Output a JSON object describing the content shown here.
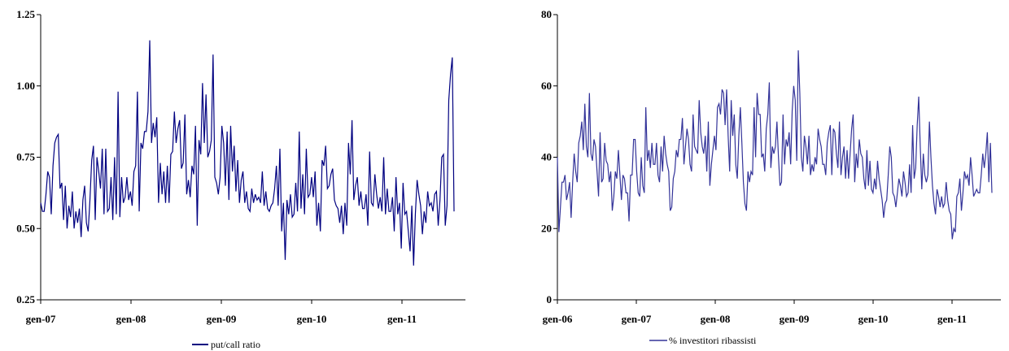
{
  "chart_data": [
    {
      "type": "line",
      "title": "",
      "xlabel": "",
      "ylabel": "",
      "ylim": [
        0.25,
        1.25
      ],
      "yticks": [
        "0.25",
        "0.50",
        "0.75",
        "1.00",
        "1.25"
      ],
      "xticks": [
        "gen-07",
        "gen-08",
        "gen-09",
        "gen-10",
        "gen-11"
      ],
      "x_start": "2007-01",
      "grid": false,
      "legend_position": "bottom",
      "series": [
        {
          "name": "put/call ratio",
          "color": "#000080",
          "values": [
            0.59,
            0.56,
            0.56,
            0.62,
            0.7,
            0.68,
            0.55,
            0.72,
            0.8,
            0.82,
            0.83,
            0.64,
            0.66,
            0.53,
            0.65,
            0.5,
            0.58,
            0.54,
            0.63,
            0.5,
            0.56,
            0.52,
            0.57,
            0.47,
            0.6,
            0.65,
            0.52,
            0.49,
            0.6,
            0.74,
            0.79,
            0.53,
            0.75,
            0.7,
            0.64,
            0.78,
            0.55,
            0.78,
            0.56,
            0.57,
            0.68,
            0.53,
            0.75,
            0.55,
            0.98,
            0.54,
            0.68,
            0.59,
            0.61,
            0.68,
            0.6,
            0.63,
            0.58,
            0.7,
            0.72,
            0.98,
            0.56,
            0.8,
            0.78,
            0.84,
            0.84,
            0.91,
            1.16,
            0.8,
            0.87,
            0.82,
            0.89,
            0.59,
            0.73,
            0.62,
            0.7,
            0.59,
            0.72,
            0.59,
            0.76,
            0.77,
            0.91,
            0.8,
            0.85,
            0.88,
            0.71,
            0.73,
            0.9,
            0.62,
            0.67,
            0.61,
            0.72,
            0.69,
            0.86,
            0.51,
            0.81,
            0.76,
            1.01,
            0.8,
            0.97,
            0.75,
            0.77,
            0.81,
            1.11,
            0.68,
            0.66,
            0.62,
            0.68,
            0.86,
            0.8,
            0.65,
            0.84,
            0.6,
            0.86,
            0.7,
            0.79,
            0.63,
            0.74,
            0.59,
            0.67,
            0.7,
            0.59,
            0.63,
            0.57,
            0.56,
            0.64,
            0.59,
            0.62,
            0.6,
            0.61,
            0.59,
            0.7,
            0.58,
            0.63,
            0.57,
            0.56,
            0.58,
            0.59,
            0.64,
            0.72,
            0.58,
            0.78,
            0.49,
            0.59,
            0.39,
            0.6,
            0.55,
            0.62,
            0.54,
            0.55,
            0.66,
            0.56,
            0.84,
            0.57,
            0.69,
            0.55,
            0.78,
            0.61,
            0.62,
            0.68,
            0.61,
            0.7,
            0.51,
            0.59,
            0.49,
            0.74,
            0.72,
            0.79,
            0.64,
            0.65,
            0.69,
            0.71,
            0.6,
            0.58,
            0.57,
            0.52,
            0.58,
            0.48,
            0.59,
            0.51,
            0.8,
            0.69,
            0.88,
            0.6,
            0.65,
            0.68,
            0.58,
            0.63,
            0.57,
            0.57,
            0.62,
            0.51,
            0.77,
            0.59,
            0.58,
            0.69,
            0.62,
            0.57,
            0.61,
            0.56,
            0.75,
            0.55,
            0.64,
            0.56,
            0.56,
            0.61,
            0.49,
            0.68,
            0.55,
            0.59,
            0.43,
            0.66,
            0.55,
            0.56,
            0.49,
            0.42,
            0.58,
            0.37,
            0.55,
            0.67,
            0.62,
            0.58,
            0.48,
            0.56,
            0.52,
            0.63,
            0.58,
            0.59,
            0.56,
            0.62,
            0.63,
            0.51,
            0.6,
            0.75,
            0.76,
            0.51,
            0.58,
            0.95,
            1.04,
            1.1,
            0.56
          ]
        }
      ]
    },
    {
      "type": "line",
      "title": "",
      "xlabel": "",
      "ylabel": "",
      "ylim": [
        0,
        80
      ],
      "yticks": [
        "0",
        "20",
        "40",
        "60",
        "80"
      ],
      "xticks": [
        "gen-06",
        "gen-07",
        "gen-08",
        "gen-09",
        "gen-10",
        "gen-11"
      ],
      "x_start": "2006-01",
      "grid": false,
      "legend_position": "bottom",
      "series": [
        {
          "name": "% investitori ribassisti",
          "color": "#333399",
          "values": [
            40,
            19,
            26,
            33,
            33,
            35,
            28,
            30,
            33,
            23,
            33,
            41,
            36,
            33,
            44,
            46,
            50,
            42,
            55,
            43,
            40,
            58,
            41,
            39,
            45,
            43,
            36,
            29,
            47,
            33,
            34,
            44,
            39,
            38,
            33,
            36,
            25,
            29,
            36,
            34,
            42,
            35,
            28,
            35,
            34,
            30,
            30,
            22,
            35,
            35,
            45,
            45,
            36,
            30,
            29,
            40,
            32,
            30,
            54,
            39,
            42,
            37,
            44,
            38,
            38,
            44,
            35,
            33,
            43,
            36,
            46,
            41,
            38,
            36,
            25,
            26,
            34,
            36,
            42,
            40,
            45,
            45,
            51,
            38,
            43,
            48,
            45,
            38,
            36,
            52,
            43,
            42,
            41,
            56,
            47,
            43,
            41,
            46,
            36,
            50,
            32,
            38,
            42,
            46,
            42,
            54,
            55,
            52,
            59,
            58,
            49,
            59,
            46,
            36,
            56,
            46,
            52,
            38,
            34,
            46,
            54,
            44,
            33,
            27,
            25,
            36,
            33,
            36,
            35,
            54,
            40,
            58,
            52,
            52,
            40,
            41,
            36,
            48,
            52,
            61,
            37,
            43,
            41,
            43,
            50,
            40,
            32,
            33,
            52,
            38,
            45,
            43,
            47,
            38,
            53,
            60,
            56,
            39,
            70,
            58,
            40,
            36,
            46,
            43,
            38,
            46,
            35,
            38,
            36,
            40,
            38,
            48,
            45,
            43,
            38,
            38,
            35,
            44,
            47,
            49,
            35,
            48,
            47,
            41,
            37,
            50,
            35,
            40,
            43,
            34,
            42,
            34,
            41,
            48,
            52,
            33,
            41,
            37,
            45,
            41,
            40,
            34,
            31,
            42,
            32,
            39,
            31,
            30,
            34,
            31,
            39,
            34,
            31,
            28,
            23,
            27,
            28,
            35,
            43,
            40,
            30,
            29,
            26,
            30,
            34,
            32,
            29,
            36,
            33,
            29,
            30,
            38,
            30,
            49,
            34,
            37,
            49,
            57,
            43,
            31,
            41,
            35,
            33,
            35,
            50,
            40,
            32,
            27,
            24,
            31,
            29,
            26,
            29,
            26,
            27,
            33,
            28,
            25,
            24,
            17,
            20,
            19,
            29,
            30,
            34,
            25,
            30,
            36,
            34,
            35,
            32,
            40,
            35,
            29,
            30,
            31,
            30,
            30,
            35,
            41,
            37,
            41,
            47,
            33,
            44,
            30
          ]
        }
      ]
    }
  ]
}
